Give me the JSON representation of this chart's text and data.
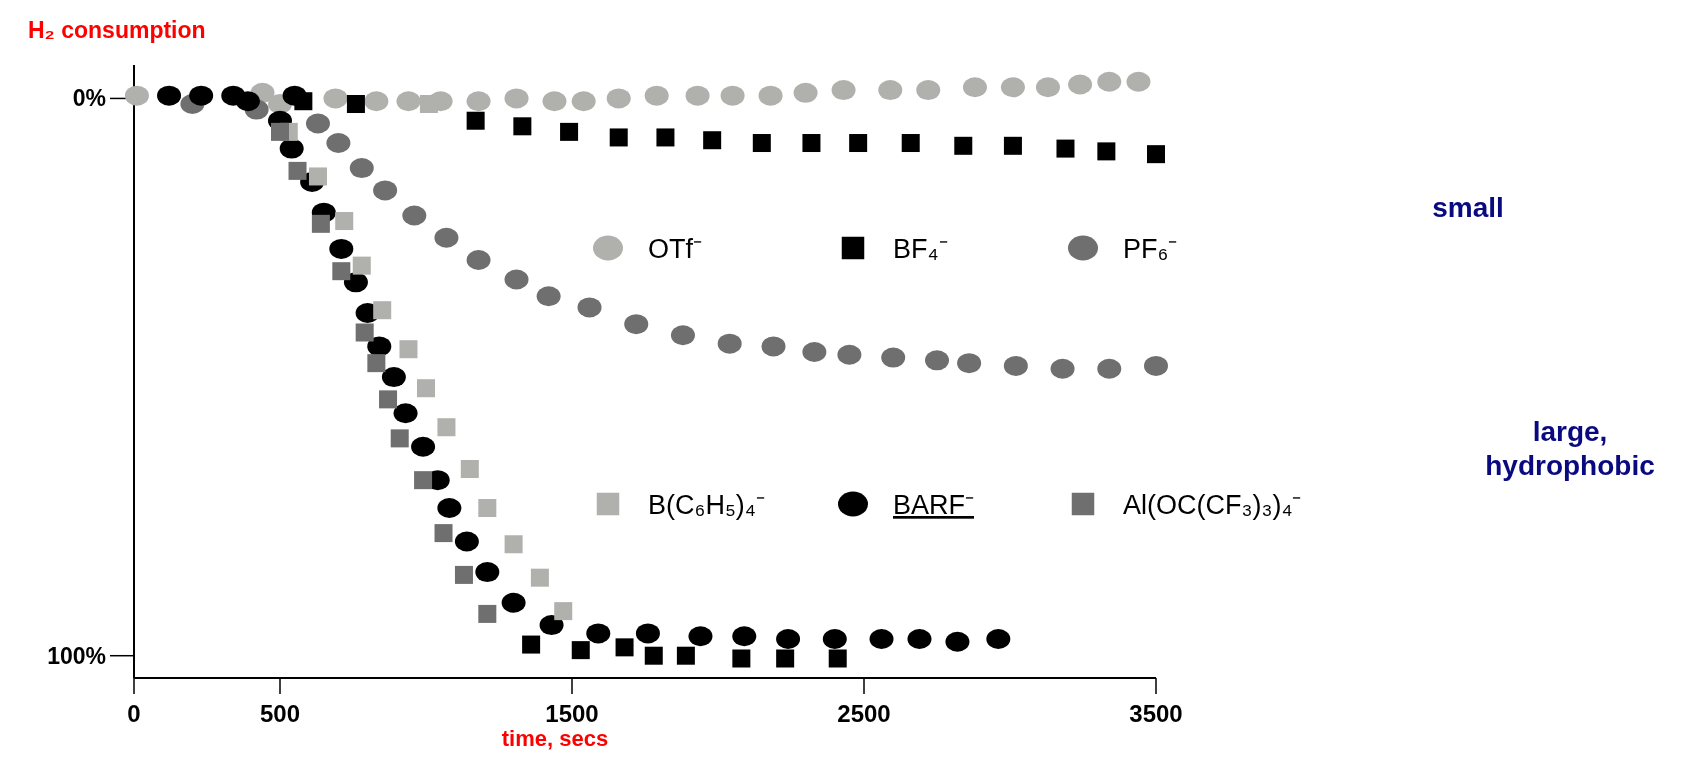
{
  "chart_data": {
    "type": "scatter",
    "title": "H₂ consumption",
    "xlabel": "time, secs",
    "annotations": [
      "small",
      "large, hydrophobic"
    ],
    "xlim": [
      0,
      3500
    ],
    "ylim": [
      104,
      -6
    ],
    "xticks": [
      0,
      500,
      1500,
      2500,
      3500
    ],
    "yticks": [
      {
        "value": 0,
        "label": "0%"
      },
      {
        "value": 100,
        "label": "100%"
      }
    ],
    "legend": "center",
    "series": [
      {
        "name": "OTf⁻",
        "color": "#b0b0ac",
        "marker": "circle",
        "x": [
          10,
          440,
          500,
          690,
          830,
          940,
          1050,
          1180,
          1310,
          1440,
          1540,
          1660,
          1790,
          1930,
          2050,
          2180,
          2300,
          2430,
          2590,
          2720,
          2880,
          3010,
          3130,
          3240,
          3340,
          3440
        ],
        "values": [
          -0.5,
          -1,
          1,
          0,
          0.5,
          0.5,
          0.5,
          0.5,
          0,
          0.5,
          0.5,
          0,
          -0.5,
          -0.5,
          -0.5,
          -0.5,
          -1,
          -1.5,
          -1.5,
          -1.5,
          -2,
          -2,
          -2,
          -2.5,
          -3,
          -3
        ]
      },
      {
        "name": "BF₄⁻",
        "color": "#000000",
        "marker": "square",
        "x": [
          580,
          760,
          1170,
          1330,
          1490,
          1660,
          1820,
          1980,
          2150,
          2320,
          2480,
          2660,
          2840,
          3010,
          3190,
          3330,
          3500
        ],
        "values": [
          0.5,
          1,
          4,
          5,
          6,
          7,
          7,
          7.5,
          8,
          8,
          8,
          8,
          8.5,
          8.5,
          9,
          9.5,
          10
        ]
      },
      {
        "name": "PF₆⁻",
        "color": "#6f6f6f",
        "marker": "circle",
        "x": [
          200,
          420,
          630,
          700,
          780,
          860,
          960,
          1070,
          1180,
          1310,
          1420,
          1560,
          1720,
          1880,
          2040,
          2190,
          2330,
          2450,
          2600,
          2750,
          2860,
          3020,
          3180,
          3340,
          3500
        ],
        "values": [
          1,
          2,
          4.5,
          8,
          12.5,
          16.5,
          21,
          25,
          29,
          32.5,
          35.5,
          37.5,
          40.5,
          42.5,
          44,
          44.5,
          45.5,
          46,
          46.5,
          47,
          47.5,
          48,
          48.5,
          48.5,
          48
        ]
      },
      {
        "name": "B(C₆H₅)₄⁻",
        "color": "#b0b0ac",
        "marker": "square",
        "x": [
          530,
          630,
          720,
          780,
          850,
          940,
          1000,
          1010,
          1070,
          1150,
          1210,
          1300,
          1390,
          1470
        ],
        "values": [
          6,
          14,
          22,
          30,
          38,
          45,
          52,
          1,
          59,
          66.5,
          73.5,
          80,
          86,
          92
        ]
      },
      {
        "name": "BARF⁻",
        "color": "#000000",
        "marker": "circle",
        "x": [
          120,
          230,
          340,
          390,
          500,
          540,
          550,
          610,
          650,
          710,
          760,
          800,
          840,
          890,
          930,
          990,
          1040,
          1080,
          1140,
          1210,
          1300,
          1430,
          1590,
          1760,
          1940,
          2090,
          2240,
          2400,
          2560,
          2690,
          2820,
          2960
        ],
        "values": [
          -0.5,
          -0.5,
          -0.5,
          0.5,
          4,
          9,
          -0.5,
          15,
          20.5,
          27,
          33,
          38.5,
          44.5,
          50,
          56.5,
          62.5,
          68.5,
          73.5,
          79.5,
          85,
          90.5,
          94.5,
          96,
          96,
          96.5,
          96.5,
          97,
          97,
          97,
          97,
          97.5,
          97
        ]
      },
      {
        "name": "Al(OC(CF₃)₃)₄⁻",
        "color": "#6f6f6f",
        "marker": "square",
        "x": [
          500,
          560,
          640,
          710,
          790,
          830,
          870,
          910,
          990,
          1060,
          1130,
          1210
        ],
        "values": [
          6,
          13,
          22.5,
          31,
          42,
          47.5,
          54,
          61,
          68.5,
          78,
          85.5,
          92.5
        ]
      },
      {
        "color": "#000000",
        "marker": "square",
        "x": [
          1360,
          1530,
          1680,
          1780,
          1890,
          2080,
          2230,
          2410
        ],
        "values": [
          98,
          99,
          98.5,
          100,
          100,
          100.5,
          100.5,
          100.5
        ]
      }
    ]
  }
}
